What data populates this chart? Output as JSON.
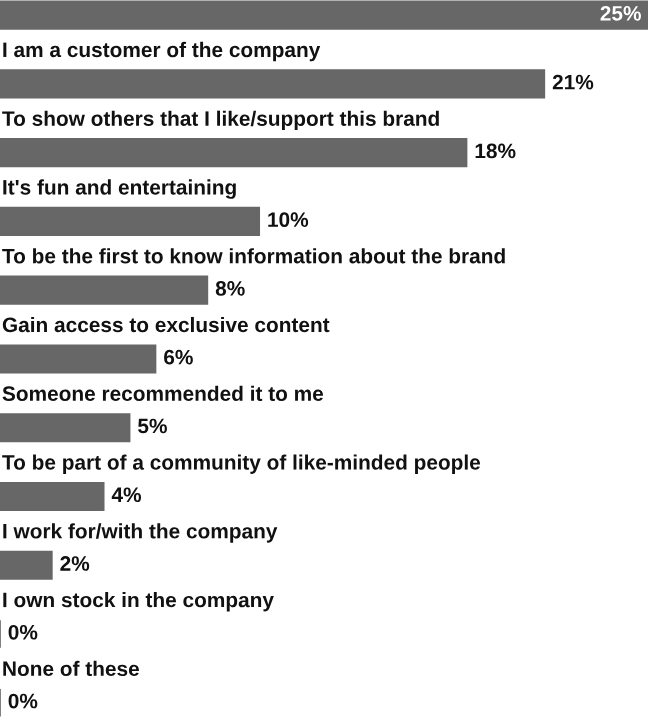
{
  "chart_data": {
    "type": "bar",
    "orientation": "horizontal",
    "color": "#676767",
    "value_labels": [
      "25%",
      "21%",
      "18%",
      "10%",
      "8%",
      "6%",
      "5%",
      "4%",
      "2%",
      "0%",
      "0%"
    ],
    "categories": [
      null,
      "I am a customer of the company",
      "To show others that I like/support this brand",
      "It's fun and entertaining",
      "To be the first to know information about the brand",
      "Gain access to exclusive content",
      "Someone recommended it to me",
      "To be part of a community of like-minded people",
      "I work for/with the company",
      "I own stock in the company",
      "None of these"
    ],
    "values": [
      25,
      21,
      18,
      10,
      8,
      6,
      5,
      4,
      2,
      0,
      0
    ]
  }
}
